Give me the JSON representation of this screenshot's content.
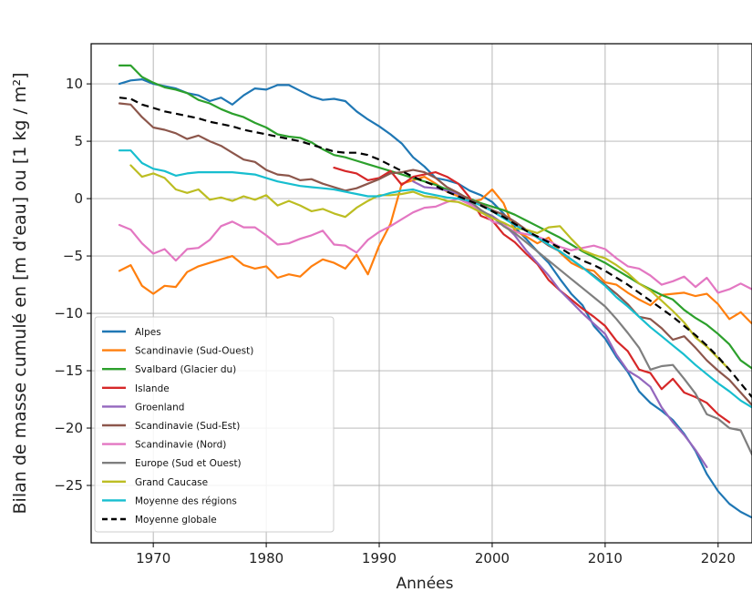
{
  "chart_data": {
    "type": "line",
    "title": "",
    "xlabel": "Années",
    "ylabel": "Bilan de masse cumulé en [m d'eau] ou [1 kg / m²]",
    "xlim": [
      1964.5,
      2023
    ],
    "ylim": [
      -30,
      13.5
    ],
    "xticks": [
      1970,
      1980,
      1990,
      2000,
      2010,
      2020
    ],
    "yticks": [
      10,
      5,
      0,
      -5,
      -10,
      -15,
      -20,
      -25
    ],
    "grid": true,
    "legend_position": "bottom-left",
    "series": [
      {
        "name": "Alpes",
        "color": "#1f77b4",
        "style": "solid",
        "start_year": 1967,
        "values": [
          10.0,
          10.3,
          10.4,
          10.0,
          9.8,
          9.6,
          9.2,
          9.0,
          8.5,
          8.8,
          8.2,
          9.0,
          9.6,
          9.5,
          9.9,
          9.9,
          9.4,
          8.9,
          8.6,
          8.7,
          8.5,
          7.6,
          6.9,
          6.3,
          5.6,
          4.8,
          3.6,
          2.8,
          1.8,
          1.6,
          1.3,
          0.7,
          0.3,
          -0.3,
          -1.3,
          -2.5,
          -3.5,
          -4.6,
          -5.6,
          -7.0,
          -8.3,
          -9.3,
          -11.1,
          -12.2,
          -13.8,
          -15.1,
          -16.8,
          -17.8,
          -18.5,
          -19.3,
          -20.5,
          -22.0,
          -24.0,
          -25.5,
          -26.6,
          -27.3,
          -27.8
        ]
      },
      {
        "name": "Scandinavie (Sud-Ouest)",
        "color": "#ff7f0e",
        "style": "solid",
        "start_year": 1967,
        "values": [
          -6.3,
          -5.8,
          -7.6,
          -8.3,
          -7.6,
          -7.7,
          -6.4,
          -5.9,
          -5.6,
          -5.3,
          -5.0,
          -5.8,
          -6.1,
          -5.9,
          -6.9,
          -6.6,
          -6.8,
          -5.9,
          -5.3,
          -5.6,
          -6.1,
          -4.9,
          -6.6,
          -4.1,
          -2.2,
          1.3,
          1.6,
          1.9,
          1.3,
          0.6,
          0.2,
          -0.3,
          -0.1,
          0.8,
          -0.4,
          -2.8,
          -3.3,
          -3.9,
          -3.4,
          -4.7,
          -5.6,
          -6.1,
          -6.3,
          -7.3,
          -7.5,
          -8.2,
          -8.8,
          -9.3,
          -8.4,
          -8.3,
          -8.2,
          -8.5,
          -8.3,
          -9.2,
          -10.5,
          -9.9,
          -10.9
        ]
      },
      {
        "name": "Svalbard (Glacier du)",
        "color": "#2ca02c",
        "style": "solid",
        "start_year": 1967,
        "values": [
          11.6,
          11.6,
          10.6,
          10.1,
          9.7,
          9.5,
          9.2,
          8.6,
          8.3,
          7.8,
          7.4,
          7.1,
          6.6,
          6.2,
          5.6,
          5.4,
          5.3,
          4.9,
          4.3,
          3.8,
          3.6,
          3.3,
          3.0,
          2.7,
          2.4,
          2.1,
          1.8,
          1.5,
          1.2,
          0.8,
          0.4,
          0.0,
          -0.4,
          -0.7,
          -1.0,
          -1.4,
          -1.9,
          -2.4,
          -2.9,
          -3.4,
          -4.0,
          -4.6,
          -5.1,
          -5.6,
          -6.2,
          -6.8,
          -7.4,
          -7.9,
          -8.4,
          -8.8,
          -9.7,
          -10.4,
          -11.0,
          -11.8,
          -12.7,
          -14.1,
          -14.8
        ]
      },
      {
        "name": "Islande",
        "color": "#d62728",
        "style": "solid",
        "start_year": 1986,
        "values": [
          2.7,
          2.4,
          2.2,
          1.6,
          1.8,
          2.4,
          1.2,
          1.9,
          2.1,
          2.3,
          1.9,
          1.3,
          0.1,
          -1.5,
          -1.9,
          -3.1,
          -3.8,
          -4.8,
          -5.7,
          -7.1,
          -8.0,
          -8.8,
          -9.6,
          -10.3,
          -11.1,
          -12.4,
          -13.3,
          -14.9,
          -15.2,
          -16.6,
          -15.7,
          -16.9,
          -17.3,
          -17.8,
          -18.8,
          -19.5
        ]
      },
      {
        "name": "Groenland",
        "color": "#9467bd",
        "style": "solid",
        "start_year": 1993,
        "values": [
          1.5,
          1.0,
          0.9,
          0.7,
          0.4,
          -0.4,
          -1.1,
          -1.5,
          -2.2,
          -3.2,
          -4.5,
          -5.6,
          -6.7,
          -8.0,
          -9.0,
          -10.0,
          -10.9,
          -11.8,
          -13.6,
          -15.0,
          -15.6,
          -16.4,
          -18.2,
          -19.5,
          -20.6,
          -21.9,
          -23.4
        ]
      },
      {
        "name": "Scandinavie (Sud-Est)",
        "color": "#8c564b",
        "style": "solid",
        "start_year": 1967,
        "values": [
          8.3,
          8.2,
          7.1,
          6.2,
          6.0,
          5.7,
          5.2,
          5.5,
          5.0,
          4.6,
          4.0,
          3.4,
          3.2,
          2.5,
          2.1,
          2.0,
          1.6,
          1.7,
          1.3,
          1.0,
          0.7,
          0.9,
          1.3,
          1.7,
          2.2,
          2.3,
          2.5,
          2.3,
          1.8,
          1.0,
          0.5,
          -0.1,
          -0.5,
          -1.0,
          -1.4,
          -2.0,
          -2.7,
          -3.4,
          -4.1,
          -4.6,
          -5.3,
          -6.0,
          -6.7,
          -7.5,
          -8.3,
          -9.2,
          -10.3,
          -10.5,
          -11.3,
          -12.3,
          -12.0,
          -13.0,
          -14.1,
          -15.0,
          -15.8,
          -16.9,
          -18.0
        ]
      },
      {
        "name": "Scandinavie (Nord)",
        "color": "#e377c2",
        "style": "solid",
        "start_year": 1967,
        "values": [
          -2.3,
          -2.7,
          -3.9,
          -4.8,
          -4.4,
          -5.4,
          -4.4,
          -4.3,
          -3.6,
          -2.4,
          -2.0,
          -2.5,
          -2.5,
          -3.2,
          -4.0,
          -3.9,
          -3.5,
          -3.2,
          -2.8,
          -4.0,
          -4.1,
          -4.7,
          -3.6,
          -2.9,
          -2.4,
          -1.8,
          -1.2,
          -0.8,
          -0.7,
          -0.3,
          0.0,
          -0.5,
          -1.0,
          -2.0,
          -2.3,
          -2.9,
          -3.1,
          -3.3,
          -3.7,
          -4.2,
          -4.5,
          -4.3,
          -4.1,
          -4.4,
          -5.2,
          -5.9,
          -6.1,
          -6.7,
          -7.5,
          -7.2,
          -6.8,
          -7.7,
          -6.9,
          -8.2,
          -7.9,
          -7.4,
          -7.9
        ]
      },
      {
        "name": "Europe (Sud et Ouest)",
        "color": "#7f7f7f",
        "style": "solid",
        "start_year": 1997,
        "values": [
          0.1,
          -0.2,
          -1.0,
          -1.6,
          -2.4,
          -3.0,
          -3.8,
          -4.6,
          -5.4,
          -6.2,
          -7.0,
          -7.8,
          -8.6,
          -9.4,
          -10.5,
          -11.7,
          -13.0,
          -14.9,
          -14.6,
          -14.5,
          -15.7,
          -17.0,
          -18.8,
          -19.2,
          -20.0,
          -20.2,
          -22.3
        ]
      },
      {
        "name": "Grand Caucase",
        "color": "#bcbd22",
        "style": "solid",
        "start_year": 1968,
        "values": [
          2.9,
          1.9,
          2.2,
          1.8,
          0.8,
          0.5,
          0.8,
          -0.1,
          0.1,
          -0.2,
          0.2,
          -0.1,
          0.3,
          -0.6,
          -0.2,
          -0.6,
          -1.1,
          -0.9,
          -1.3,
          -1.6,
          -0.8,
          -0.2,
          0.3,
          0.3,
          0.4,
          0.6,
          0.2,
          0.1,
          -0.2,
          -0.3,
          -0.7,
          -1.2,
          -1.7,
          -2.1,
          -2.6,
          -2.7,
          -3.0,
          -2.5,
          -2.4,
          -3.5,
          -4.5,
          -4.9,
          -5.2,
          -5.8,
          -6.5,
          -7.4,
          -8.0,
          -8.9,
          -9.8,
          -10.8,
          -12.1,
          -12.9,
          -13.9,
          -14.9
        ]
      },
      {
        "name": "Moyenne des régions",
        "color": "#17becf",
        "style": "solid",
        "start_year": 1967,
        "values": [
          4.2,
          4.2,
          3.1,
          2.6,
          2.4,
          2.0,
          2.2,
          2.3,
          2.3,
          2.3,
          2.3,
          2.2,
          2.1,
          1.8,
          1.5,
          1.3,
          1.1,
          1.0,
          0.9,
          0.8,
          0.6,
          0.4,
          0.2,
          0.2,
          0.5,
          0.7,
          0.8,
          0.5,
          0.3,
          0.1,
          0.0,
          -0.2,
          -0.6,
          -1.1,
          -1.7,
          -2.3,
          -2.8,
          -3.4,
          -4.0,
          -4.6,
          -5.3,
          -6.0,
          -6.8,
          -7.6,
          -8.6,
          -9.4,
          -10.3,
          -11.2,
          -12.0,
          -12.8,
          -13.6,
          -14.5,
          -15.3,
          -16.1,
          -16.8,
          -17.6,
          -18.2
        ]
      },
      {
        "name": "Moyenne globale",
        "color": "#000000",
        "style": "dashed",
        "start_year": 1967,
        "values": [
          8.8,
          8.7,
          8.2,
          7.9,
          7.6,
          7.4,
          7.2,
          7.0,
          6.7,
          6.5,
          6.3,
          6.0,
          5.8,
          5.6,
          5.4,
          5.2,
          5.0,
          4.7,
          4.4,
          4.1,
          4.0,
          4.0,
          3.8,
          3.4,
          2.9,
          2.4,
          1.9,
          1.5,
          1.1,
          0.6,
          0.2,
          -0.2,
          -0.6,
          -1.1,
          -1.6,
          -2.2,
          -2.8,
          -3.3,
          -3.8,
          -4.3,
          -4.9,
          -5.4,
          -5.8,
          -6.3,
          -6.9,
          -7.5,
          -8.2,
          -8.9,
          -9.6,
          -10.3,
          -11.1,
          -11.9,
          -12.8,
          -13.8,
          -14.9,
          -16.1,
          -17.3
        ]
      }
    ]
  }
}
